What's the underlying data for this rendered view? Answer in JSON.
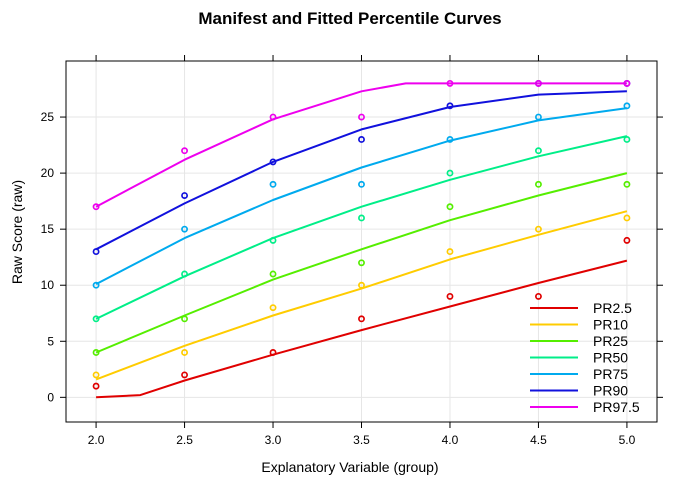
{
  "chart_data": {
    "type": "line",
    "title": "Manifest and Fitted Percentile Curves",
    "xlabel": "Explanatory Variable (group)",
    "ylabel": "Raw Score (raw)",
    "xlim": [
      1.83,
      5.17
    ],
    "ylim": [
      -2.2,
      30.0
    ],
    "x_ticks": [
      "2.0",
      "2.5",
      "3.0",
      "3.5",
      "4.0",
      "4.5",
      "5.0"
    ],
    "y_ticks": [
      "0",
      "5",
      "10",
      "15",
      "20",
      "25"
    ],
    "grid": true,
    "legend_position": "bottom-right",
    "series": [
      {
        "name": "PR2.5",
        "color": "#e00000",
        "curve_x": [
          2.0,
          2.25,
          2.5,
          3.0,
          3.5,
          4.0,
          4.5,
          5.0
        ],
        "curve_y": [
          0.0,
          0.2,
          1.5,
          3.8,
          6.0,
          8.1,
          10.2,
          12.2
        ],
        "points": [
          [
            2.0,
            1
          ],
          [
            2.5,
            2
          ],
          [
            3.0,
            4
          ],
          [
            3.5,
            7
          ],
          [
            4.0,
            9
          ],
          [
            4.5,
            9
          ],
          [
            5.0,
            14
          ]
        ]
      },
      {
        "name": "PR10",
        "color": "#ffcc00",
        "curve_x": [
          2.0,
          2.5,
          3.0,
          3.5,
          4.0,
          4.5,
          5.0
        ],
        "curve_y": [
          1.6,
          4.6,
          7.3,
          9.7,
          12.3,
          14.5,
          16.6
        ],
        "points": [
          [
            2.0,
            2
          ],
          [
            2.5,
            4
          ],
          [
            3.0,
            8
          ],
          [
            3.5,
            10
          ],
          [
            4.0,
            13
          ],
          [
            4.5,
            15
          ],
          [
            5.0,
            16
          ]
        ]
      },
      {
        "name": "PR25",
        "color": "#55ee00",
        "curve_x": [
          2.0,
          2.5,
          3.0,
          3.5,
          4.0,
          4.5,
          5.0
        ],
        "curve_y": [
          4.0,
          7.3,
          10.5,
          13.2,
          15.8,
          18.0,
          20.0
        ],
        "points": [
          [
            2.0,
            4
          ],
          [
            2.5,
            7
          ],
          [
            3.0,
            11
          ],
          [
            3.5,
            12
          ],
          [
            4.0,
            17
          ],
          [
            4.5,
            19
          ],
          [
            5.0,
            19
          ]
        ]
      },
      {
        "name": "PR50",
        "color": "#00ee88",
        "curve_x": [
          2.0,
          2.5,
          3.0,
          3.5,
          4.0,
          4.5,
          5.0
        ],
        "curve_y": [
          7.0,
          10.8,
          14.2,
          17.0,
          19.4,
          21.5,
          23.3
        ],
        "points": [
          [
            2.0,
            7
          ],
          [
            2.5,
            11
          ],
          [
            3.0,
            14
          ],
          [
            3.5,
            16
          ],
          [
            4.0,
            20
          ],
          [
            4.5,
            22
          ],
          [
            5.0,
            23
          ]
        ]
      },
      {
        "name": "PR75",
        "color": "#00aaee",
        "curve_x": [
          2.0,
          2.5,
          3.0,
          3.5,
          4.0,
          4.5,
          5.0
        ],
        "curve_y": [
          10.1,
          14.2,
          17.6,
          20.5,
          22.9,
          24.7,
          25.8
        ],
        "points": [
          [
            2.0,
            10
          ],
          [
            2.5,
            15
          ],
          [
            3.0,
            19
          ],
          [
            3.5,
            19
          ],
          [
            4.0,
            23
          ],
          [
            4.5,
            25
          ],
          [
            5.0,
            26
          ]
        ]
      },
      {
        "name": "PR90",
        "color": "#1111dd",
        "curve_x": [
          2.0,
          2.5,
          3.0,
          3.5,
          4.0,
          4.5,
          5.0
        ],
        "curve_y": [
          13.2,
          17.3,
          21.0,
          23.9,
          25.9,
          27.0,
          27.3
        ],
        "points": [
          [
            2.0,
            13
          ],
          [
            2.5,
            18
          ],
          [
            3.0,
            21
          ],
          [
            3.5,
            23
          ],
          [
            4.0,
            26
          ],
          [
            4.5,
            28
          ],
          [
            5.0,
            28
          ]
        ]
      },
      {
        "name": "PR97.5",
        "color": "#ee00ee",
        "curve_x": [
          2.0,
          2.5,
          3.0,
          3.5,
          3.75,
          4.0,
          4.5,
          5.0
        ],
        "curve_y": [
          17.0,
          21.2,
          24.8,
          27.3,
          28.0,
          28.0,
          28.0,
          28.0
        ],
        "points": [
          [
            2.0,
            17
          ],
          [
            2.5,
            22
          ],
          [
            3.0,
            25
          ],
          [
            3.5,
            25
          ],
          [
            4.0,
            28
          ],
          [
            4.5,
            28
          ],
          [
            5.0,
            28
          ]
        ]
      }
    ]
  }
}
